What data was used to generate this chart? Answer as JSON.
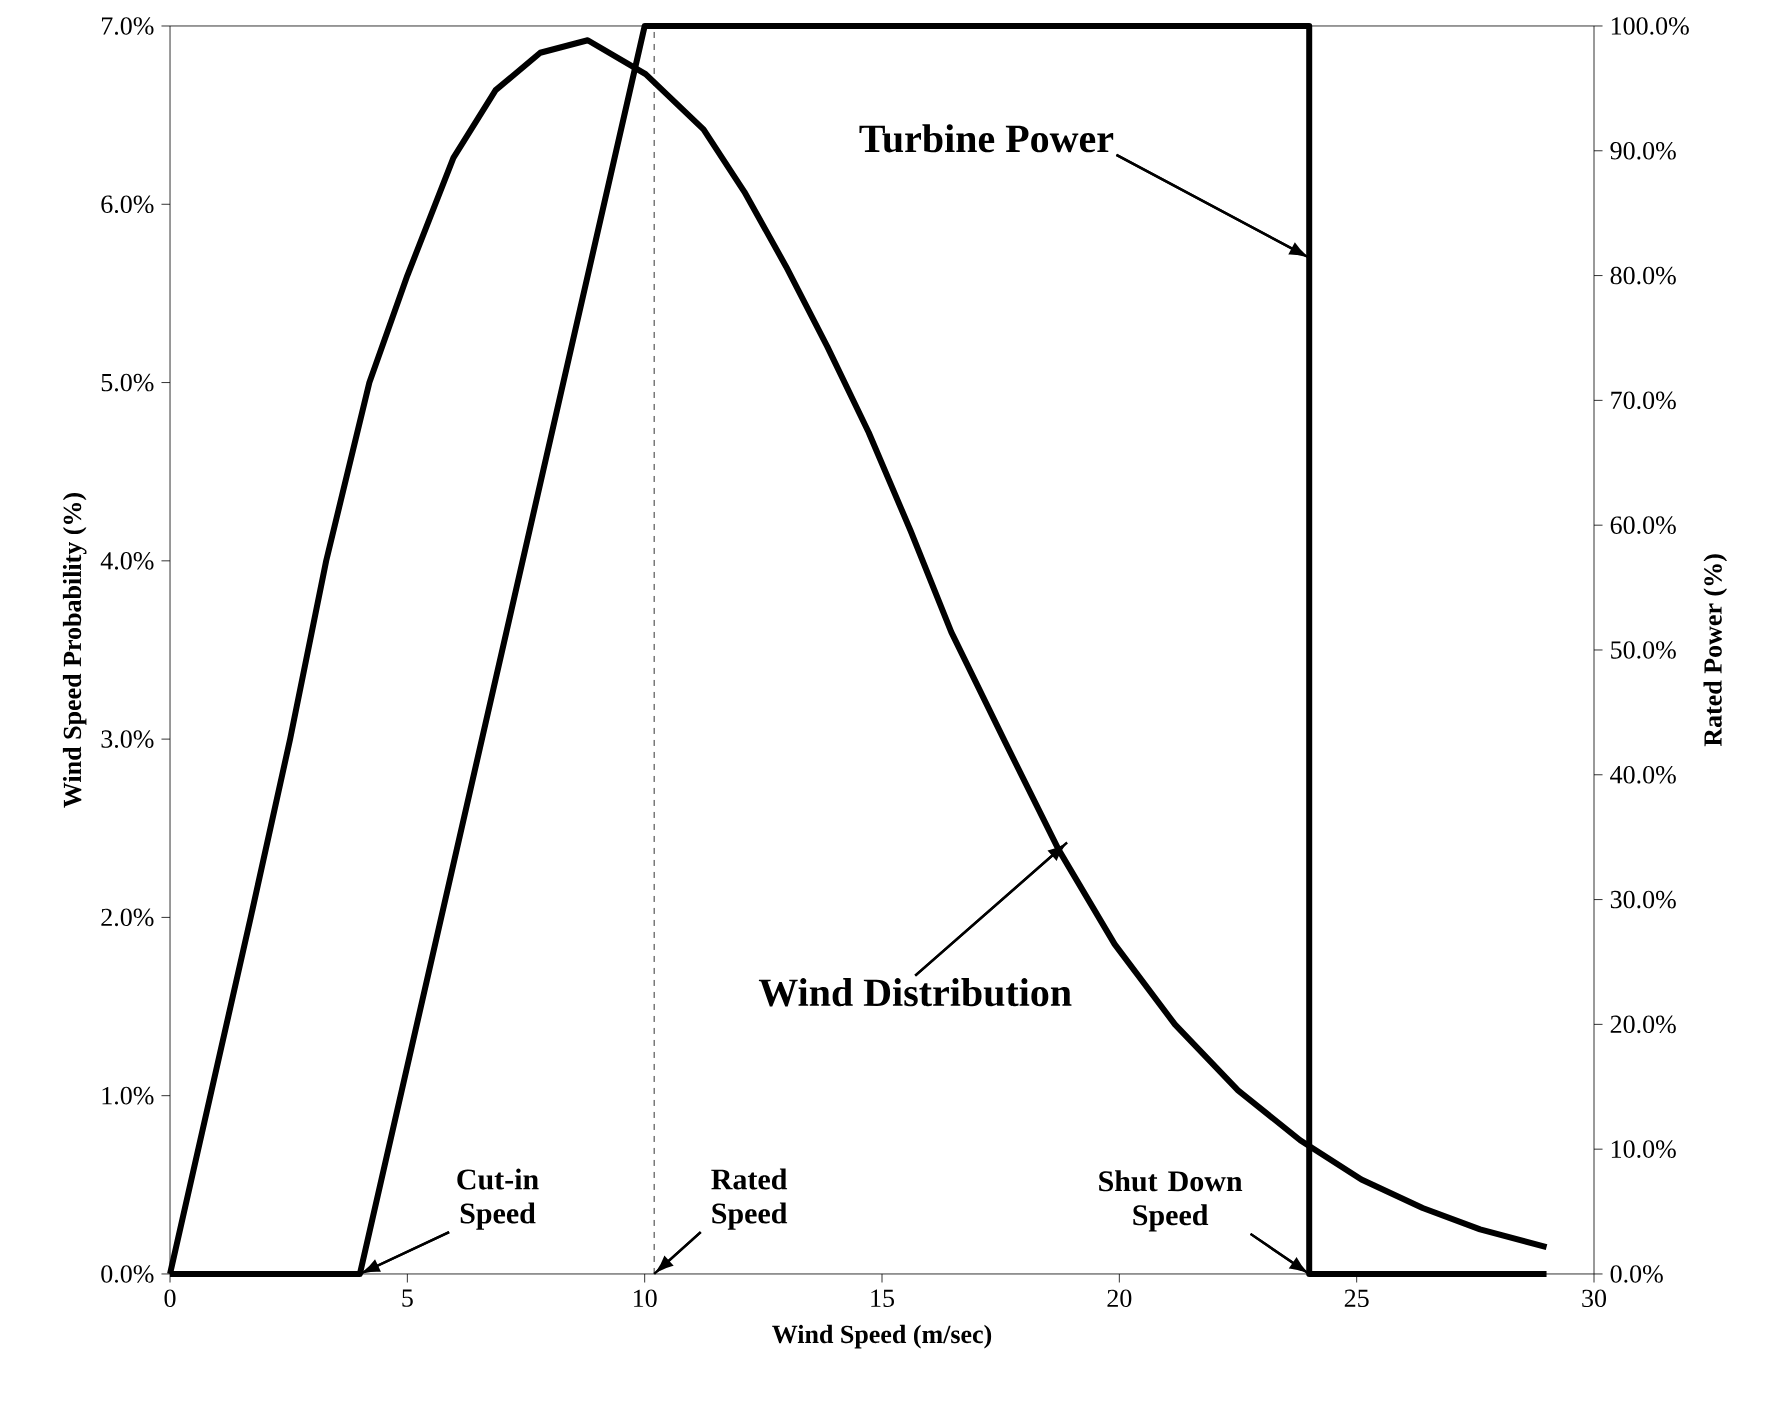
{
  "chart_data": {
    "type": "line",
    "xlabel": "Wind Speed (m/sec)",
    "ylabel": "Wind Speed Probability (%)",
    "y2label": "Rated Power (%)",
    "xlim": [
      0,
      30
    ],
    "xticks": [
      0,
      5,
      10,
      15,
      20,
      25,
      30
    ],
    "ylim": [
      0,
      7
    ],
    "yticks": [
      {
        "value": 0,
        "label": "0.0%"
      },
      {
        "value": 1,
        "label": "1.0%"
      },
      {
        "value": 2,
        "label": "2.0%"
      },
      {
        "value": 3,
        "label": "3.0%"
      },
      {
        "value": 4,
        "label": "4.0%"
      },
      {
        "value": 5,
        "label": "5.0%"
      },
      {
        "value": 6,
        "label": "6.0%"
      },
      {
        "value": 7,
        "label": "7.0%"
      }
    ],
    "y2lim": [
      0,
      100
    ],
    "y2ticks": [
      {
        "value": 0,
        "label": "0.0%"
      },
      {
        "value": 10,
        "label": "10.0%"
      },
      {
        "value": 20,
        "label": "20.0%"
      },
      {
        "value": 30,
        "label": "30.0%"
      },
      {
        "value": 40,
        "label": "40.0%"
      },
      {
        "value": 50,
        "label": "50.0%"
      },
      {
        "value": 60,
        "label": "60.0%"
      },
      {
        "value": 70,
        "label": "70.0%"
      },
      {
        "value": 80,
        "label": "80.0%"
      },
      {
        "value": 90,
        "label": "90.0%"
      },
      {
        "value": 100,
        "label": "100.0%"
      }
    ],
    "grid": false,
    "marker": "none",
    "line_style": "solid",
    "series": [
      {
        "color": "#000000",
        "x": [
          0,
          0.85,
          1.7,
          2.53,
          3.29,
          4.2,
          5.0,
          5.97,
          6.86,
          7.8,
          8.8,
          10.02,
          11.24,
          12.1,
          12.98,
          13.85,
          14.72,
          15.6,
          16.46,
          17.6,
          18.72,
          19.9,
          21.17,
          22.5,
          23.81,
          25.1,
          26.39,
          27.6,
          29
        ],
        "values": [
          0,
          1.0,
          2.0,
          3.0,
          4.0,
          5.0,
          5.6,
          6.26,
          6.64,
          6.85,
          6.92,
          6.73,
          6.42,
          6.07,
          5.65,
          5.2,
          4.72,
          4.17,
          3.6,
          2.98,
          2.38,
          1.85,
          1.4,
          1.03,
          0.75,
          0.53,
          0.37,
          0.25,
          0.15
        ]
      },
      {
        "color": "#000000",
        "axis": "y2",
        "x": [
          0,
          4,
          10,
          24,
          24,
          29
        ],
        "values": [
          0,
          0,
          100,
          100,
          0,
          0
        ]
      }
    ],
    "ref_lines": [
      {
        "axis": "x",
        "value": 10.2,
        "line_style": "dashed",
        "color": "#000000"
      }
    ],
    "annotations": [
      {
        "text": "Turbine Power",
        "x": 24,
        "y": 5.7
      },
      {
        "text": "Wind Distribution",
        "x": 18.9,
        "y": 2.42
      },
      {
        "text": "Cut-in Speed",
        "x": 4,
        "y": 0
      },
      {
        "text": "Rated Speed",
        "x": 10.2,
        "y": 0
      },
      {
        "text": "Shut Down Speed",
        "x": 24,
        "y": 0
      }
    ]
  }
}
